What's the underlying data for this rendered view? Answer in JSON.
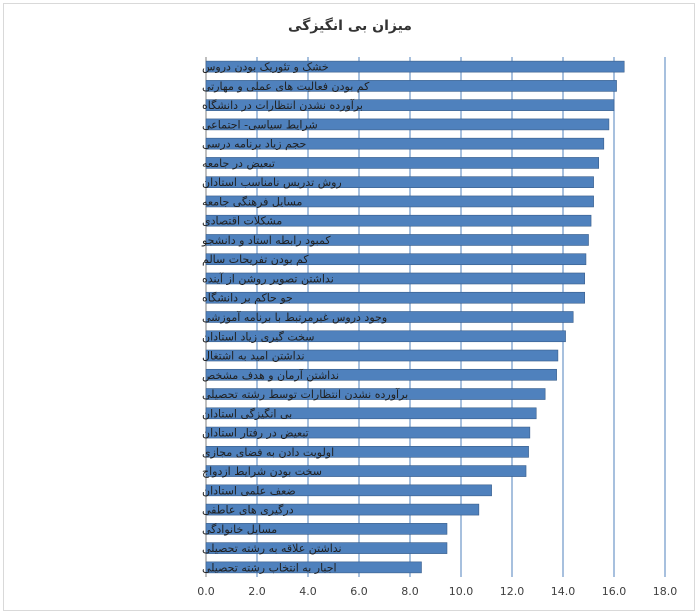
{
  "chart_data": {
    "type": "bar",
    "orientation": "horizontal",
    "title": "میزان بی انگیزگی",
    "xlabel": "",
    "ylabel": "",
    "xlim": [
      0,
      18
    ],
    "x_ticks": [
      "0.0",
      "2.0",
      "4.0",
      "6.0",
      "8.0",
      "10.0",
      "12.0",
      "14.0",
      "16.0",
      "18.0"
    ],
    "grid": true,
    "bar_color": "#4f81bd",
    "grid_color": "#4f81bd",
    "categories": [
      "خشک و تئوریک بودن دروس",
      "کم بودن فعالیت های عملی و مهارتی",
      "برآورده نشدن انتظارات در دانشگاه",
      "شرایط سیاسی- اجتماعی",
      "حجم زیاد برنامه درسی",
      "تبعیض در جامعه",
      "روش تدریس نامناسب استادان",
      "مسایل فرهنگی جامعه",
      "مشکلات اقتصادی",
      "کمبود رابطه استاد و دانشجو",
      "کم بودن تفریحات سالم",
      "نداشتن تصویر روشن از آینده",
      "جو حاکم بر دانشگاه",
      "وجود دروس غیرمرتبط با برنامه آموزشی",
      "سخت گیری زیاد استادان",
      "نداشتن امید به اشتغال",
      "نداشتن آرمان و هدف مشخص",
      "برآورده نشدن انتظارات توسط رشته تحصیلی",
      "بی انگیزگی استادان",
      "تبعیض در رفتار استادان",
      "اولویت دادن به فضای مجازی",
      "سخت بودن شرایط ازدواج",
      "ضعف علمی استادان",
      "درگیری های عاطفی",
      "مسایل خانوادگی",
      "نداشتن علاقه به رشته تحصیلی",
      "اجبار به انتخاب رشته تحصیلی"
    ],
    "values": [
      16.4,
      16.1,
      16.0,
      15.8,
      15.6,
      15.4,
      15.2,
      15.2,
      15.1,
      15.0,
      14.9,
      14.85,
      14.85,
      14.4,
      14.1,
      13.8,
      13.75,
      13.3,
      12.95,
      12.7,
      12.65,
      12.55,
      11.2,
      10.7,
      9.45,
      9.45,
      8.45
    ]
  }
}
